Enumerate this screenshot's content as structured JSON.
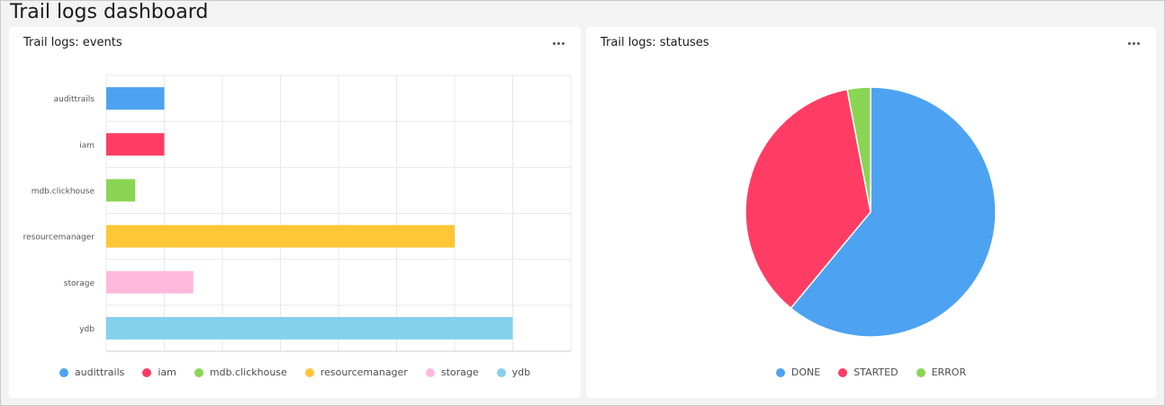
{
  "dashboard": {
    "title": "Trail logs dashboard"
  },
  "colors": {
    "audittrails": "#4da2f1",
    "iam": "#ff3d64",
    "mdb_clickhouse": "#8ad554",
    "resourcemanager": "#ffc636",
    "storage": "#ffb9dd",
    "ydb": "#84d1ee"
  },
  "widgets": {
    "events": {
      "title": "Trail logs: events",
      "more_icon": "ellipsis-icon",
      "chart_data": {
        "type": "bar",
        "orientation": "horizontal",
        "title": "Trail logs: events",
        "categories": [
          "audittrails",
          "iam",
          "mdb.clickhouse",
          "resourcemanager",
          "storage",
          "ydb"
        ],
        "values": [
          2,
          2,
          1,
          12,
          3,
          14
        ],
        "colors": [
          "#4da2f1",
          "#ff3d64",
          "#8ad554",
          "#ffc636",
          "#ffb9dd",
          "#84d1ee"
        ],
        "xlim": [
          0,
          16
        ],
        "xticks": [
          "0",
          "2",
          "4",
          "6",
          "8",
          "10",
          "12",
          "14",
          "16"
        ],
        "grid": true,
        "legend_position": "bottom"
      },
      "legend": [
        "audittrails",
        "iam",
        "mdb.clickhouse",
        "resourcemanager",
        "storage",
        "ydb"
      ]
    },
    "statuses": {
      "title": "Trail logs: statuses",
      "more_icon": "ellipsis-icon",
      "chart_data": {
        "type": "pie",
        "title": "Trail logs: statuses",
        "categories": [
          "DONE",
          "STARTED",
          "ERROR"
        ],
        "values": [
          61,
          36,
          3
        ],
        "colors": [
          "#4da2f1",
          "#ff3d64",
          "#8ad554"
        ],
        "legend_position": "bottom"
      },
      "legend": [
        "DONE",
        "STARTED",
        "ERROR"
      ]
    }
  }
}
